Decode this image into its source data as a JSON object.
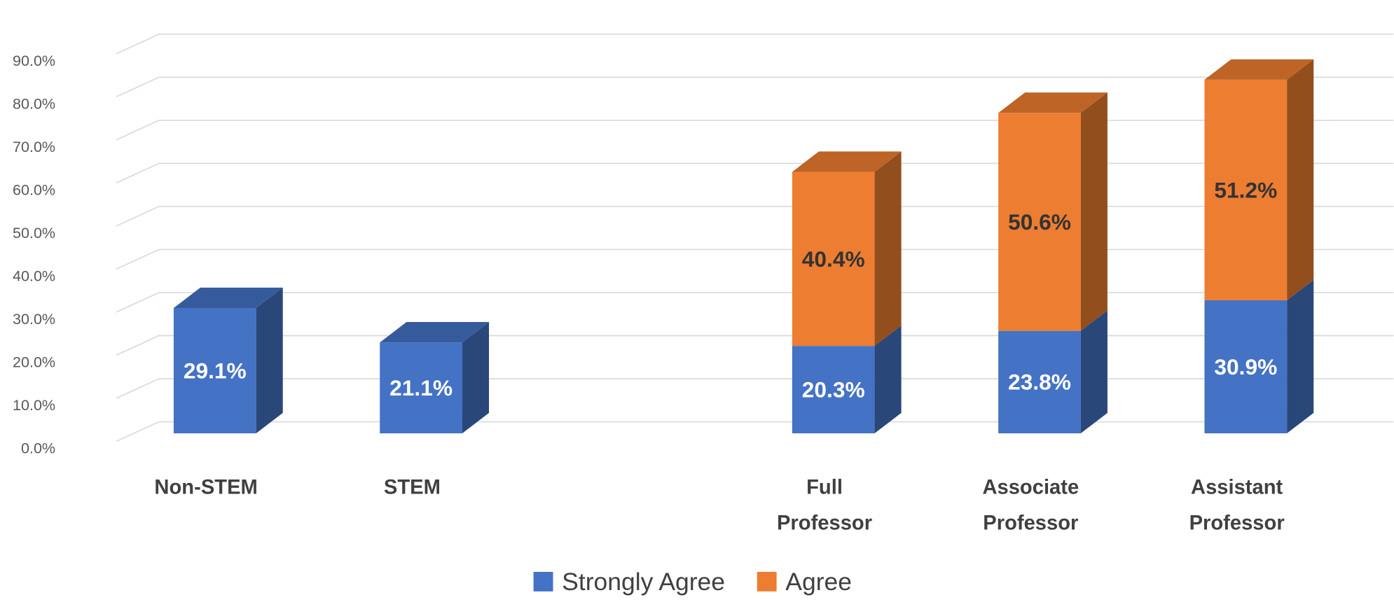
{
  "chart_data": {
    "type": "bar3d_stacked",
    "categories": [
      "Non-STEM",
      "STEM",
      null,
      "Full Professor",
      "Associate Professor",
      "Assistant Professor"
    ],
    "series": [
      {
        "name": "Strongly Agree",
        "color": "#4472c4",
        "label_color": "#ffffff",
        "values": [
          29.1,
          21.1,
          null,
          20.3,
          23.8,
          30.9
        ],
        "value_labels": [
          "29.1%",
          "21.1%",
          null,
          "20.3%",
          "23.8%",
          "30.9%"
        ]
      },
      {
        "name": "Agree",
        "color": "#ed7d31",
        "label_color": "#333333",
        "values": [
          null,
          null,
          null,
          40.4,
          50.6,
          51.2
        ],
        "value_labels": [
          null,
          null,
          null,
          "40.4%",
          "50.6%",
          "51.2%"
        ]
      }
    ],
    "ylim": [
      0,
      100
    ],
    "yticks": [
      {
        "value": 0,
        "label": "0.0%"
      },
      {
        "value": 10,
        "label": "10.0%"
      },
      {
        "value": 20,
        "label": "20.0%"
      },
      {
        "value": 30,
        "label": "30.0%"
      },
      {
        "value": 40,
        "label": "40.0%"
      },
      {
        "value": 50,
        "label": "50.0%"
      },
      {
        "value": 60,
        "label": "60.0%"
      },
      {
        "value": 70,
        "label": "70.0%"
      },
      {
        "value": 80,
        "label": "80.0%"
      },
      {
        "value": 90,
        "label": "90.0%"
      }
    ],
    "grid": true,
    "legend": "bottom"
  }
}
